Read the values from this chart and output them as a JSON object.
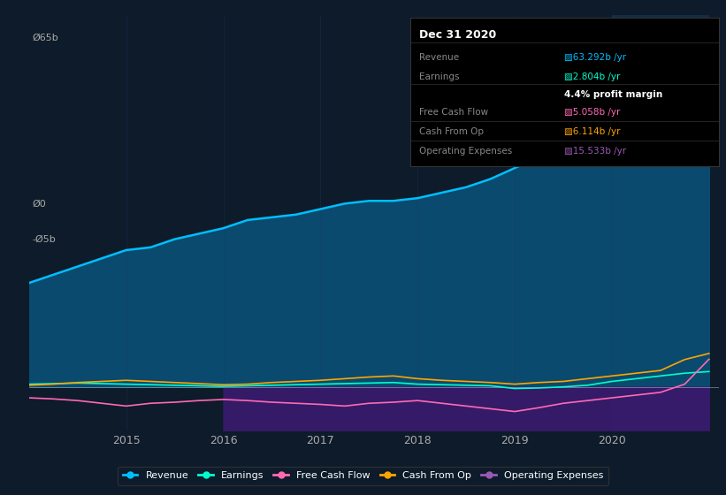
{
  "background_color": "#0d1b2a",
  "plot_bg_color": "#0d1b2a",
  "grid_color": "#1e3a5f",
  "title": "Dec 31 2020",
  "ylabel_text": "Ø65b",
  "y0_text": "Ø0",
  "yn5b_text": "-Ø5b",
  "x_ticks": [
    2015,
    2016,
    2017,
    2018,
    2019,
    2020
  ],
  "years": [
    2014.0,
    2014.25,
    2014.5,
    2014.75,
    2015.0,
    2015.25,
    2015.5,
    2015.75,
    2016.0,
    2016.25,
    2016.5,
    2016.75,
    2017.0,
    2017.25,
    2017.5,
    2017.75,
    2018.0,
    2018.25,
    2018.5,
    2018.75,
    2019.0,
    2019.25,
    2019.5,
    2019.75,
    2020.0,
    2020.25,
    2020.5,
    2020.75,
    2021.0
  ],
  "revenue": [
    19.0,
    20.5,
    22.0,
    23.5,
    25.0,
    25.5,
    27.0,
    28.0,
    29.0,
    30.5,
    31.0,
    31.5,
    32.5,
    33.5,
    34.0,
    34.0,
    34.5,
    35.5,
    36.5,
    38.0,
    40.0,
    42.0,
    45.0,
    50.0,
    55.0,
    57.0,
    59.0,
    62.0,
    63.3
  ],
  "earnings": [
    0.5,
    0.6,
    0.7,
    0.6,
    0.5,
    0.4,
    0.3,
    0.2,
    0.1,
    0.2,
    0.3,
    0.4,
    0.5,
    0.6,
    0.7,
    0.8,
    0.5,
    0.4,
    0.3,
    0.2,
    -0.3,
    -0.2,
    0.0,
    0.3,
    1.0,
    1.5,
    2.0,
    2.5,
    2.8
  ],
  "free_cash_flow": [
    -2.0,
    -2.2,
    -2.5,
    -3.0,
    -3.5,
    -3.0,
    -2.8,
    -2.5,
    -2.3,
    -2.5,
    -2.8,
    -3.0,
    -3.2,
    -3.5,
    -3.0,
    -2.8,
    -2.5,
    -3.0,
    -3.5,
    -4.0,
    -4.5,
    -3.8,
    -3.0,
    -2.5,
    -2.0,
    -1.5,
    -1.0,
    0.5,
    5.058
  ],
  "cash_from_op": [
    0.3,
    0.5,
    0.8,
    1.0,
    1.2,
    1.0,
    0.8,
    0.6,
    0.4,
    0.5,
    0.8,
    1.0,
    1.2,
    1.5,
    1.8,
    2.0,
    1.5,
    1.2,
    1.0,
    0.8,
    0.5,
    0.8,
    1.0,
    1.5,
    2.0,
    2.5,
    3.0,
    5.0,
    6.114
  ],
  "operating_expenses": [
    0.0,
    0.0,
    0.0,
    0.0,
    0.0,
    0.0,
    0.0,
    0.0,
    -10.0,
    -10.5,
    -11.0,
    -11.5,
    -12.0,
    -12.5,
    -12.8,
    -13.0,
    -12.5,
    -12.0,
    -12.5,
    -13.0,
    -13.5,
    -13.8,
    -14.0,
    -14.2,
    -14.5,
    -14.8,
    -15.0,
    -15.3,
    -15.533
  ],
  "revenue_color": "#00bfff",
  "revenue_fill": "#0a4a6e",
  "earnings_color": "#00ffcc",
  "free_cash_flow_color": "#ff69b4",
  "cash_from_op_color": "#ffa500",
  "op_expenses_color": "#9b59b6",
  "op_expenses_fill": "#3a1a6e",
  "highlight_x_start": 2020.0,
  "highlight_x_end": 2021.0,
  "highlight_color": "#1a3a5c",
  "ylim": [
    -8,
    68
  ],
  "xlim": [
    2014.0,
    2021.1
  ],
  "legend_items": [
    {
      "label": "Revenue",
      "color": "#00bfff"
    },
    {
      "label": "Earnings",
      "color": "#00ffcc"
    },
    {
      "label": "Free Cash Flow",
      "color": "#ff69b4"
    },
    {
      "label": "Cash From Op",
      "color": "#ffa500"
    },
    {
      "label": "Operating Expenses",
      "color": "#9b59b6"
    }
  ],
  "tooltip_bg": "#000000",
  "tooltip_border": "#333333",
  "tooltip_title": "Dec 31 2020",
  "tooltip_data": [
    {
      "label": "Revenue",
      "value": "■63.292b /yr",
      "color": "#00bfff"
    },
    {
      "label": "Earnings",
      "value": "■2.804b /yr",
      "color": "#00ffcc"
    },
    {
      "label": "profit_margin",
      "value": "4.4% profit margin",
      "color": "#ffffff"
    },
    {
      "label": "Free Cash Flow",
      "value": "■5.058b /yr",
      "color": "#ff69b4"
    },
    {
      "label": "Cash From Op",
      "value": "■6.114b /yr",
      "color": "#ffa500"
    },
    {
      "label": "Operating Expenses",
      "value": "■15.533b /yr",
      "color": "#9b59b6"
    }
  ]
}
